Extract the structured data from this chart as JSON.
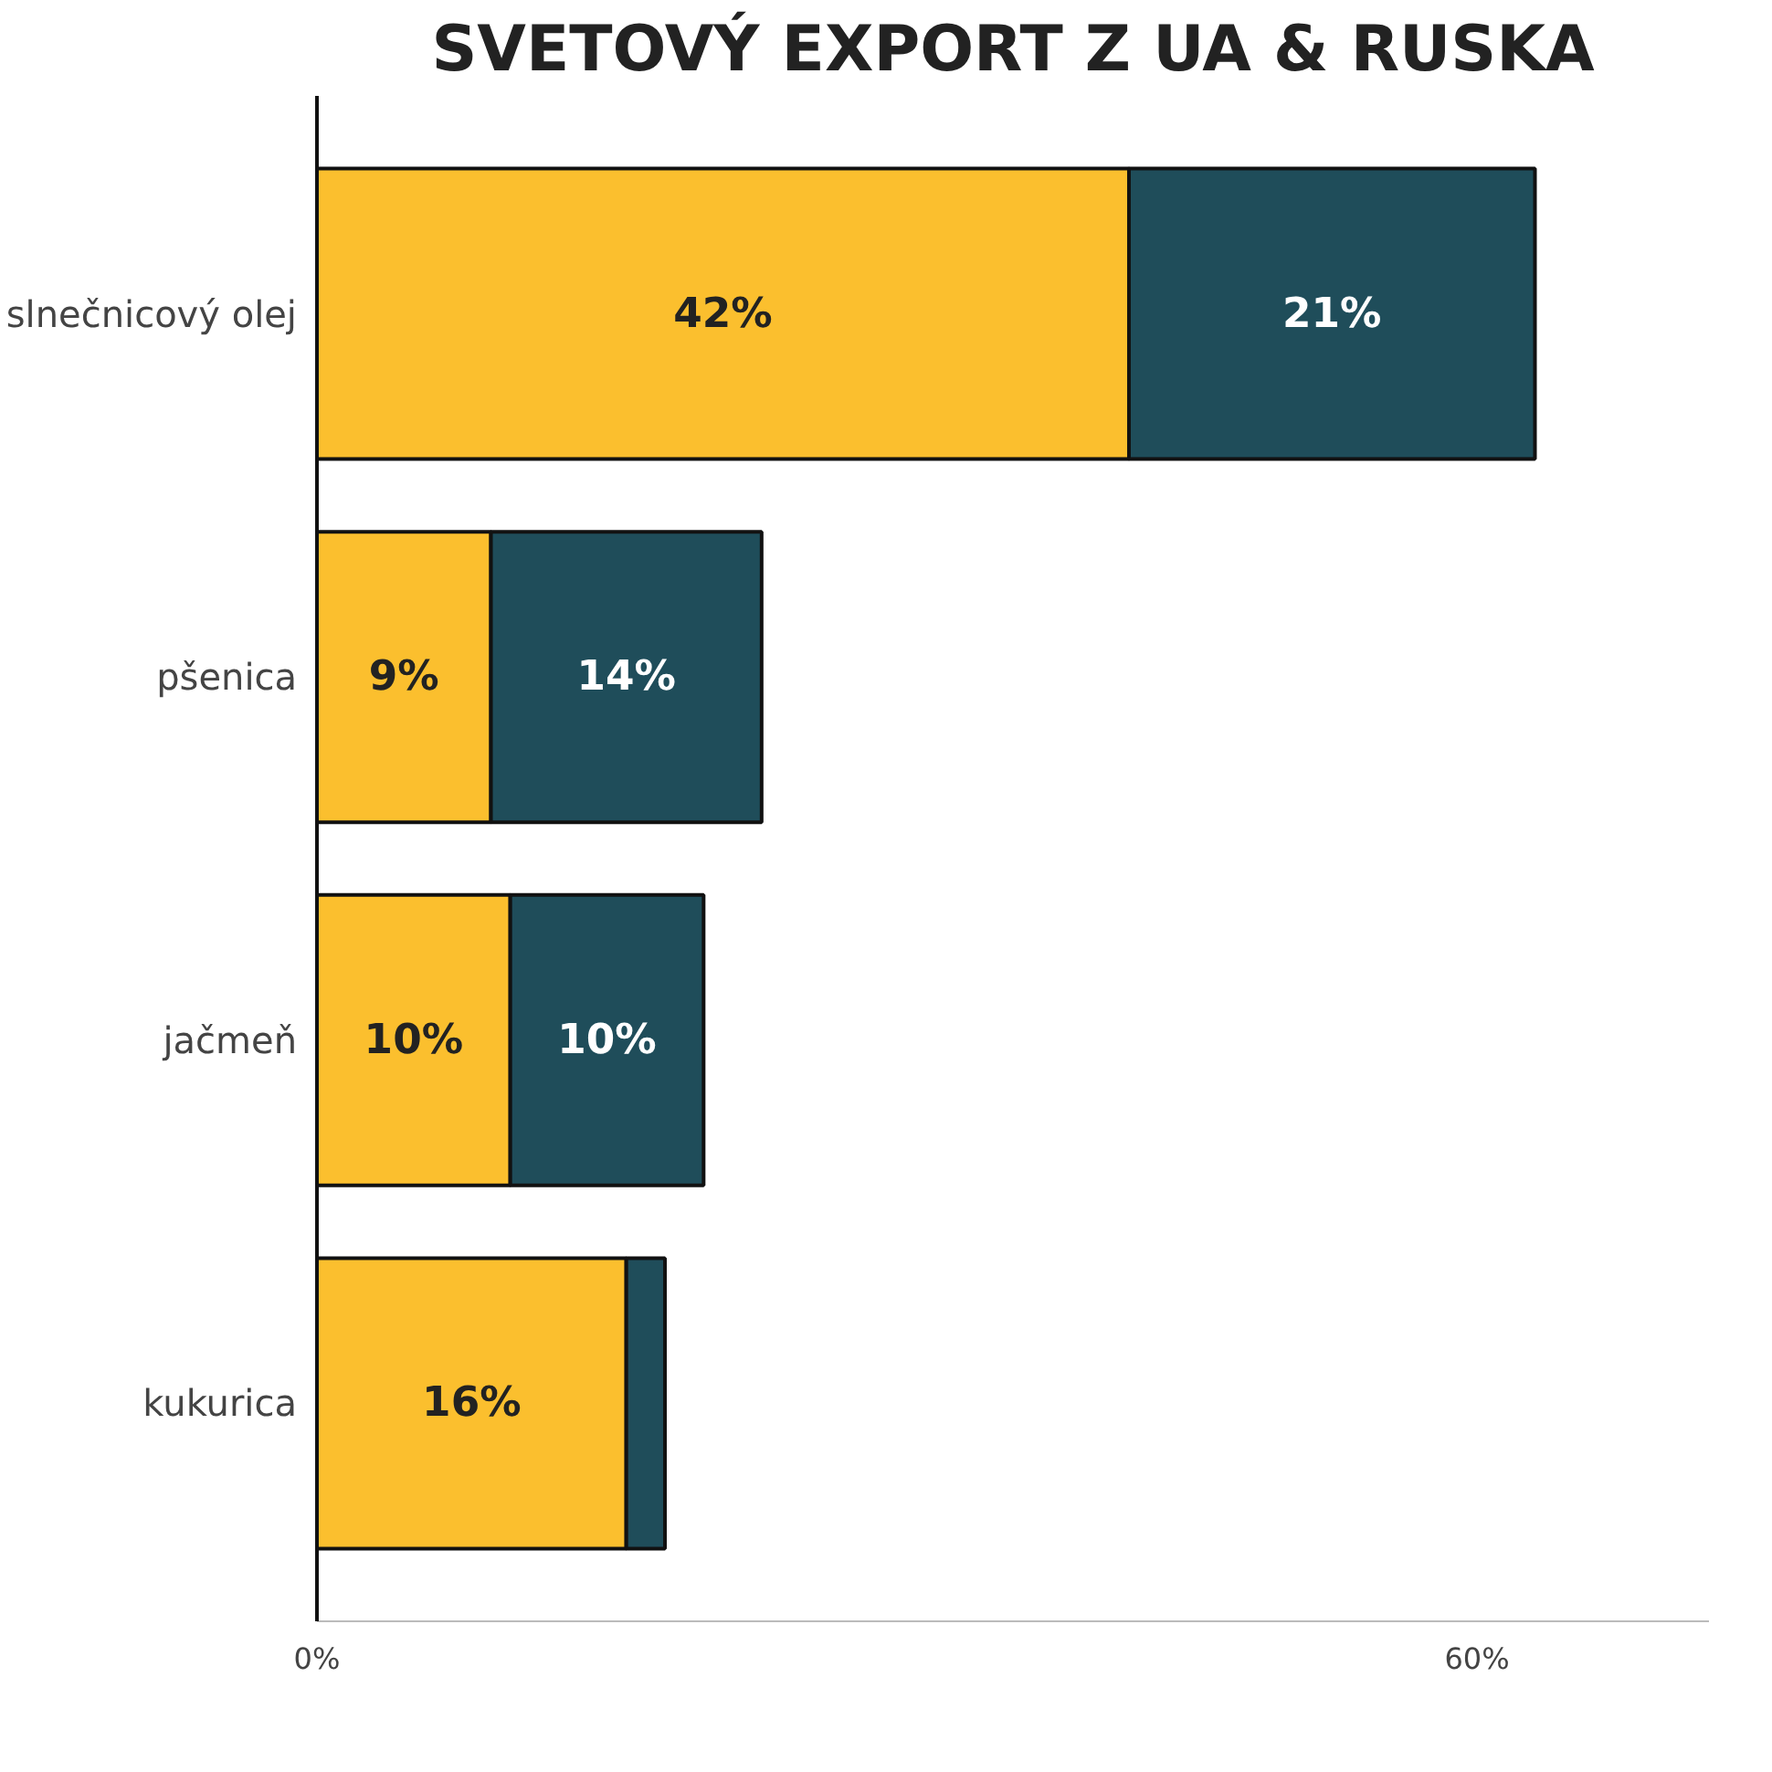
{
  "chart_data": {
    "type": "bar",
    "orientation": "horizontal",
    "stacked": true,
    "title": "SVETOVÝ EXPORT Z UA & RUSKA",
    "categories": [
      "slnečnicový olej",
      "pšenica",
      "jačmeň",
      "kukurica"
    ],
    "series": [
      {
        "color": "#fbbf2e",
        "values": [
          42,
          9,
          10,
          16
        ],
        "value_labels": [
          "42%",
          "9%",
          "10%",
          "16%"
        ]
      },
      {
        "color": "#1f4d5a",
        "values": [
          21,
          14,
          10,
          2
        ],
        "value_labels": [
          "21%",
          "14%",
          "10%",
          null
        ]
      }
    ],
    "xlim": [
      0,
      72
    ],
    "xticks": [
      {
        "value": 0,
        "label": "0%"
      },
      {
        "value": 60,
        "label": "60%"
      }
    ],
    "grid": false
  }
}
